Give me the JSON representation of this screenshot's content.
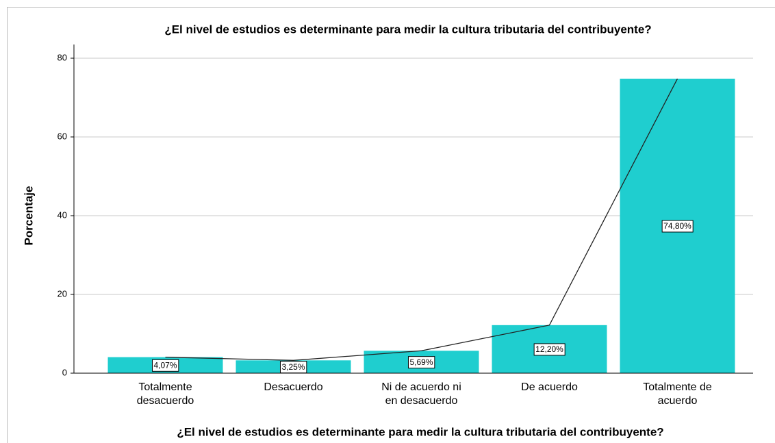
{
  "chart_data": {
    "type": "bar",
    "title": "¿El nivel de estudios es determinante para medir la cultura tributaria del contribuyente?",
    "x_label": "¿El nivel de estudios es determinante para medir la cultura tributaria del contribuyente?",
    "y_label": "Porcentaje",
    "categories": [
      "Totalmente desacuerdo",
      "Desacuerdo",
      "Ni de acuerdo ni en desacuerdo",
      "De acuerdo",
      "Totalmente de acuerdo"
    ],
    "values": [
      4.07,
      3.25,
      5.69,
      12.2,
      74.8
    ],
    "value_labels": [
      "4,07%",
      "3,25%",
      "5,69%",
      "12,20%",
      "74,80%"
    ],
    "color": "#1fcecf",
    "line_overlay": true,
    "line_color": "#222222",
    "ylim": [
      0,
      80
    ],
    "yticks": [
      0,
      20,
      40,
      60,
      80
    ],
    "grid": true
  }
}
